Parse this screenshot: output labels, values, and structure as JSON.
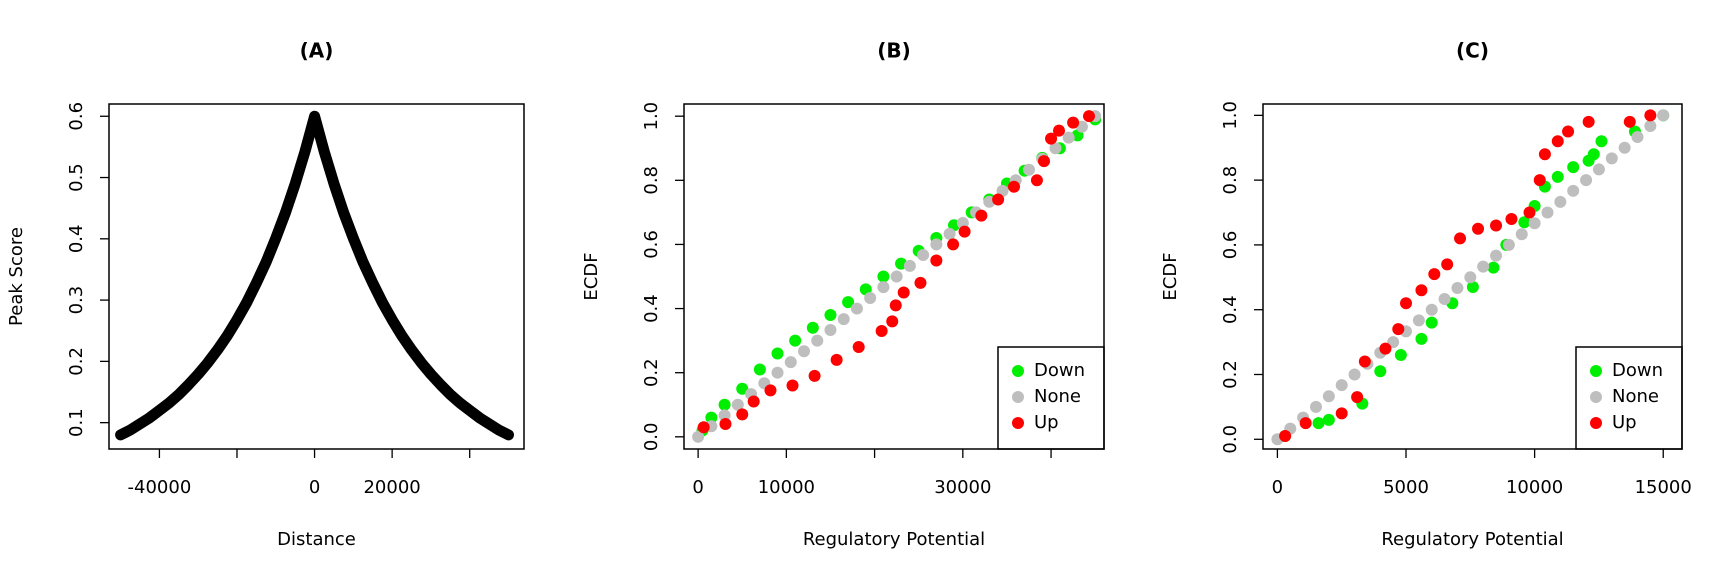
{
  "chart_data": [
    {
      "type": "line",
      "title": "(A)",
      "xlabel": "Distance",
      "ylabel": "Peak Score",
      "color": "#000000",
      "x": [
        -50000,
        -47500,
        -45000,
        -42500,
        -40000,
        -37500,
        -35000,
        -32500,
        -30000,
        -27500,
        -25000,
        -22500,
        -20000,
        -17500,
        -15000,
        -12500,
        -10000,
        -7500,
        -5000,
        -2500,
        0,
        2500,
        5000,
        7500,
        10000,
        12500,
        15000,
        17500,
        20000,
        22500,
        25000,
        27500,
        30000,
        32500,
        35000,
        37500,
        40000,
        42500,
        45000,
        47500,
        50000
      ],
      "values": [
        0.08,
        0.088,
        0.098,
        0.108,
        0.12,
        0.132,
        0.146,
        0.162,
        0.179,
        0.198,
        0.219,
        0.242,
        0.268,
        0.296,
        0.328,
        0.362,
        0.401,
        0.443,
        0.49,
        0.542,
        0.6,
        0.542,
        0.49,
        0.443,
        0.401,
        0.362,
        0.328,
        0.296,
        0.268,
        0.242,
        0.219,
        0.198,
        0.179,
        0.162,
        0.146,
        0.132,
        0.12,
        0.108,
        0.098,
        0.088,
        0.08
      ],
      "xlim": [
        -53000,
        54000
      ],
      "xticks": [
        -40000,
        {
          "value": -20000,
          "label": null
        },
        0,
        20000,
        {
          "value": 40000,
          "label": null
        }
      ],
      "ylim": [
        0.057,
        0.62
      ],
      "yticks": [
        0.1,
        0.2,
        0.3,
        0.4,
        0.5,
        0.6
      ]
    },
    {
      "type": "scatter",
      "title": "(B)",
      "xlabel": "Regulatory Potential",
      "ylabel": "ECDF",
      "legend": "bottomright",
      "xlim": [
        -1600,
        46000
      ],
      "xticks": [
        0,
        10000,
        {
          "value": 20000,
          "label": null
        },
        30000,
        {
          "value": 40000,
          "label": null
        }
      ],
      "ylim": [
        -0.038,
        1.038
      ],
      "yticks": [
        {
          "value": 0,
          "label": "0.0"
        },
        0.2,
        0.4,
        0.6,
        0.8,
        {
          "value": 1,
          "label": "1.0"
        }
      ],
      "series": [
        {
          "name": "Down",
          "color": "#00ee00",
          "x": [
            500,
            1500,
            3000,
            5000,
            7000,
            9000,
            11000,
            13000,
            15000,
            17000,
            19000,
            21000,
            23000,
            25000,
            27000,
            29000,
            31000,
            33000,
            35000,
            37000,
            39000,
            41000,
            43000,
            45000
          ],
          "values": [
            0.02,
            0.06,
            0.1,
            0.15,
            0.21,
            0.26,
            0.3,
            0.34,
            0.38,
            0.42,
            0.46,
            0.5,
            0.54,
            0.58,
            0.62,
            0.66,
            0.7,
            0.74,
            0.79,
            0.83,
            0.87,
            0.9,
            0.94,
            0.99
          ]
        },
        {
          "name": "None",
          "color": "#bebebe",
          "x": [
            0,
            1500,
            3000,
            4500,
            6000,
            7500,
            9000,
            10500,
            12000,
            13500,
            15000,
            16500,
            18000,
            19500,
            21000,
            22500,
            24000,
            25500,
            27000,
            28500,
            30000,
            31500,
            33000,
            34500,
            36000,
            37500,
            39000,
            40500,
            42000,
            43500,
            45000
          ],
          "values": [
            0,
            0.033,
            0.067,
            0.1,
            0.133,
            0.167,
            0.2,
            0.233,
            0.267,
            0.3,
            0.333,
            0.367,
            0.4,
            0.433,
            0.467,
            0.5,
            0.533,
            0.567,
            0.6,
            0.633,
            0.667,
            0.7,
            0.733,
            0.767,
            0.8,
            0.833,
            0.867,
            0.9,
            0.933,
            0.967,
            1
          ]
        },
        {
          "name": "Up",
          "color": "#ff0000",
          "x": [
            630,
            3100,
            5000,
            6300,
            8200,
            10700,
            13200,
            15700,
            18200,
            20800,
            22000,
            22400,
            23300,
            25200,
            27000,
            28900,
            30200,
            32100,
            34000,
            35800,
            38400,
            39200,
            40000,
            40900,
            42500,
            44300
          ],
          "values": [
            0.03,
            0.04,
            0.07,
            0.11,
            0.145,
            0.16,
            0.19,
            0.24,
            0.28,
            0.33,
            0.36,
            0.41,
            0.45,
            0.48,
            0.55,
            0.6,
            0.64,
            0.69,
            0.74,
            0.78,
            0.8,
            0.86,
            0.93,
            0.955,
            0.98,
            1.0
          ]
        }
      ]
    },
    {
      "type": "scatter",
      "title": "(C)",
      "xlabel": "Regulatory Potential",
      "ylabel": "ECDF",
      "legend": "bottomright",
      "xlim": [
        -560,
        15730
      ],
      "xticks": [
        0,
        5000,
        10000,
        15000
      ],
      "ylim": [
        -0.03,
        1.035
      ],
      "yticks": [
        {
          "value": 0,
          "label": "0.0"
        },
        0.2,
        0.4,
        0.6,
        0.8,
        {
          "value": 1,
          "label": "1.0"
        }
      ],
      "series": [
        {
          "name": "Down",
          "color": "#00ee00",
          "x": [
            300,
            1600,
            2000,
            3300,
            4000,
            4800,
            5600,
            6000,
            6800,
            7600,
            8400,
            8900,
            9600,
            10000,
            10400,
            10900,
            11500,
            12100,
            12300,
            12600,
            13900,
            15000
          ],
          "values": [
            0.01,
            0.05,
            0.06,
            0.11,
            0.21,
            0.26,
            0.31,
            0.36,
            0.42,
            0.47,
            0.53,
            0.6,
            0.67,
            0.72,
            0.78,
            0.81,
            0.84,
            0.86,
            0.88,
            0.92,
            0.95,
            1.0
          ]
        },
        {
          "name": "None",
          "color": "#bebebe",
          "x": [
            0,
            500,
            1000,
            1500,
            2000,
            2500,
            3000,
            3500,
            4000,
            4500,
            5000,
            5500,
            6000,
            6500,
            7000,
            7500,
            8000,
            8500,
            9000,
            9500,
            10000,
            10500,
            11000,
            11500,
            12000,
            12500,
            13000,
            13500,
            14000,
            14500,
            15000
          ],
          "values": [
            0,
            0.033,
            0.067,
            0.1,
            0.133,
            0.167,
            0.2,
            0.233,
            0.267,
            0.3,
            0.333,
            0.367,
            0.4,
            0.433,
            0.467,
            0.5,
            0.533,
            0.567,
            0.6,
            0.633,
            0.667,
            0.7,
            0.733,
            0.767,
            0.8,
            0.833,
            0.867,
            0.9,
            0.933,
            0.967,
            1
          ]
        },
        {
          "name": "Up",
          "color": "#ff0000",
          "x": [
            300,
            1100,
            2500,
            3100,
            3400,
            4200,
            4700,
            5000,
            5600,
            6100,
            6600,
            7100,
            7800,
            8500,
            9100,
            9800,
            10200,
            10400,
            10900,
            11300,
            12100,
            13700,
            14500
          ],
          "values": [
            0.01,
            0.05,
            0.08,
            0.13,
            0.24,
            0.28,
            0.34,
            0.42,
            0.46,
            0.51,
            0.54,
            0.62,
            0.65,
            0.66,
            0.68,
            0.7,
            0.8,
            0.88,
            0.92,
            0.95,
            0.98,
            0.98,
            1.0
          ]
        }
      ]
    }
  ]
}
